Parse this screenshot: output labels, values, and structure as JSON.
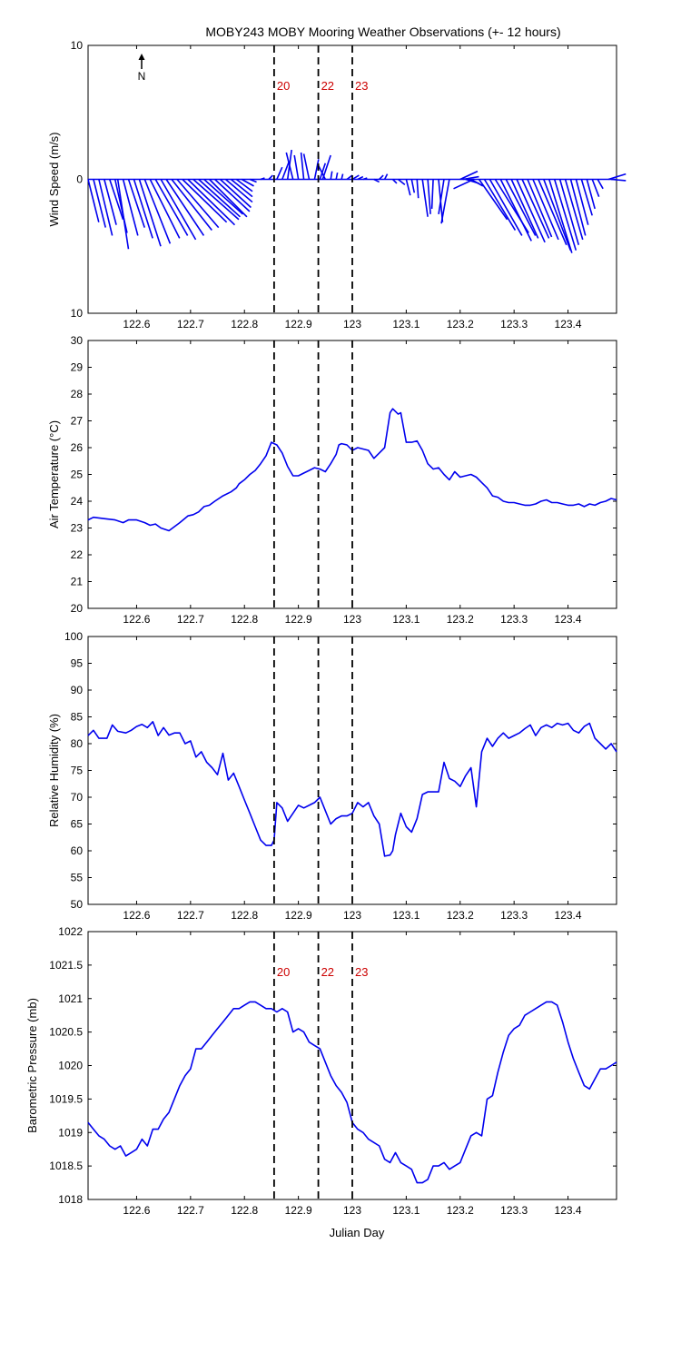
{
  "figure": {
    "title": "MOBY243 MOBY Mooring Weather Observations (+- 12 hours)",
    "xlabel": "Julian Day",
    "north_label": "N",
    "series_color": "#0000ee",
    "event_color": "#cc0000"
  },
  "x_ticks": [
    "122.6",
    "122.7",
    "122.8",
    "122.9",
    "123",
    "123.1",
    "123.2",
    "123.3",
    "123.4"
  ],
  "events": [
    {
      "label": "20",
      "x": 122.855
    },
    {
      "label": "22",
      "x": 122.937
    },
    {
      "label": "23",
      "x": 123.0
    }
  ],
  "chart_data": [
    {
      "type": "quiver",
      "ylabel": "Wind Speed (m/s)",
      "xlim": [
        122.51,
        123.49
      ],
      "ylim": [
        -10,
        10
      ],
      "y_ticks": [
        "10",
        "0",
        "10"
      ],
      "grid": false,
      "show_event_labels": true,
      "vectors": [
        {
          "x": 122.51,
          "u": 0.8,
          "v": -3.2
        },
        {
          "x": 122.52,
          "u": 0.9,
          "v": -3.6
        },
        {
          "x": 122.53,
          "u": 1.0,
          "v": -4.2
        },
        {
          "x": 122.54,
          "u": 0.9,
          "v": -3.4
        },
        {
          "x": 122.55,
          "u": 1.0,
          "v": -3.0
        },
        {
          "x": 122.56,
          "u": 0.9,
          "v": -4.0
        },
        {
          "x": 122.565,
          "u": 0.8,
          "v": -5.2
        },
        {
          "x": 122.575,
          "u": 1.1,
          "v": -4.2
        },
        {
          "x": 122.585,
          "u": 1.2,
          "v": -3.6
        },
        {
          "x": 122.595,
          "u": 1.4,
          "v": -4.4
        },
        {
          "x": 122.605,
          "u": 1.6,
          "v": -5.0
        },
        {
          "x": 122.615,
          "u": 1.9,
          "v": -4.8
        },
        {
          "x": 122.625,
          "u": 2.2,
          "v": -4.4
        },
        {
          "x": 122.635,
          "u": 2.4,
          "v": -4.2
        },
        {
          "x": 122.645,
          "u": 2.6,
          "v": -4.5
        },
        {
          "x": 122.655,
          "u": 2.8,
          "v": -4.2
        },
        {
          "x": 122.665,
          "u": 3.0,
          "v": -3.8
        },
        {
          "x": 122.675,
          "u": 3.1,
          "v": -3.6
        },
        {
          "x": 122.685,
          "u": 3.3,
          "v": -3.2
        },
        {
          "x": 122.695,
          "u": 3.5,
          "v": -3.4
        },
        {
          "x": 122.705,
          "u": 3.4,
          "v": -3.0
        },
        {
          "x": 122.715,
          "u": 3.1,
          "v": -2.8
        },
        {
          "x": 122.725,
          "u": 2.9,
          "v": -2.6
        },
        {
          "x": 122.735,
          "u": 2.8,
          "v": -2.8
        },
        {
          "x": 122.745,
          "u": 2.6,
          "v": -2.4
        },
        {
          "x": 122.755,
          "u": 2.3,
          "v": -2.1
        },
        {
          "x": 122.765,
          "u": 2.0,
          "v": -1.7
        },
        {
          "x": 122.775,
          "u": 1.6,
          "v": -1.3
        },
        {
          "x": 122.785,
          "u": 1.2,
          "v": -0.9
        },
        {
          "x": 122.795,
          "u": 0.9,
          "v": -0.5
        },
        {
          "x": 122.81,
          "u": 0.5,
          "v": -0.2
        },
        {
          "x": 122.83,
          "u": 0.3,
          "v": 0.1
        },
        {
          "x": 122.845,
          "u": 0.3,
          "v": 0.3
        },
        {
          "x": 122.86,
          "u": 0.4,
          "v": 0.9
        },
        {
          "x": 122.87,
          "u": 0.5,
          "v": 1.3
        },
        {
          "x": 122.88,
          "u": 0.3,
          "v": 2.2
        },
        {
          "x": 122.89,
          "u": -0.5,
          "v": 2.0
        },
        {
          "x": 122.9,
          "u": -0.3,
          "v": 1.8
        },
        {
          "x": 122.91,
          "u": -0.2,
          "v": 2.0
        },
        {
          "x": 122.92,
          "u": -0.4,
          "v": 1.9
        },
        {
          "x": 122.93,
          "u": 0.3,
          "v": 1.5
        },
        {
          "x": 122.94,
          "u": 0.4,
          "v": 1.2
        },
        {
          "x": 122.945,
          "u": 0.6,
          "v": 1.8
        },
        {
          "x": 122.95,
          "u": -0.6,
          "v": 1.2
        },
        {
          "x": 122.96,
          "u": 0.1,
          "v": 0.6
        },
        {
          "x": 122.97,
          "u": 0.1,
          "v": 0.5
        },
        {
          "x": 122.98,
          "u": 0.1,
          "v": 0.4
        },
        {
          "x": 122.99,
          "u": 0.4,
          "v": 0.3
        },
        {
          "x": 123.0,
          "u": 0.5,
          "v": 0.3
        },
        {
          "x": 123.01,
          "u": 0.4,
          "v": 0.2
        },
        {
          "x": 123.02,
          "u": 0.3,
          "v": 0.1
        },
        {
          "x": 123.04,
          "u": 0.4,
          "v": -0.2
        },
        {
          "x": 123.05,
          "u": 0.3,
          "v": 0.3
        },
        {
          "x": 123.06,
          "u": 0.2,
          "v": 0.4
        },
        {
          "x": 123.075,
          "u": 0.3,
          "v": -0.3
        },
        {
          "x": 123.085,
          "u": 0.5,
          "v": -0.4
        },
        {
          "x": 123.1,
          "u": 0.3,
          "v": -1.2
        },
        {
          "x": 123.11,
          "u": 0.2,
          "v": -1.0
        },
        {
          "x": 123.12,
          "u": 0.1,
          "v": -1.4
        },
        {
          "x": 123.13,
          "u": 0.4,
          "v": -2.8
        },
        {
          "x": 123.14,
          "u": 0.2,
          "v": -2.6
        },
        {
          "x": 123.15,
          "u": -0.1,
          "v": -2.2
        },
        {
          "x": 123.16,
          "u": 0.3,
          "v": -3.2
        },
        {
          "x": 123.17,
          "u": -0.4,
          "v": -2.6
        },
        {
          "x": 123.18,
          "u": -0.6,
          "v": -3.3
        },
        {
          "x": 123.2,
          "u": 1.3,
          "v": 0.6
        },
        {
          "x": 123.205,
          "u": 1.2,
          "v": 0.2
        },
        {
          "x": 123.21,
          "u": 1.0,
          "v": -0.3
        },
        {
          "x": 123.22,
          "u": 0.9,
          "v": -0.5
        },
        {
          "x": 123.225,
          "u": -1.5,
          "v": -0.7
        },
        {
          "x": 123.235,
          "u": 2.1,
          "v": -3.0
        },
        {
          "x": 123.245,
          "u": 2.3,
          "v": -3.8
        },
        {
          "x": 123.255,
          "u": 2.4,
          "v": -4.2
        },
        {
          "x": 123.265,
          "u": 2.5,
          "v": -4.0
        },
        {
          "x": 123.275,
          "u": 2.3,
          "v": -4.6
        },
        {
          "x": 123.285,
          "u": 2.2,
          "v": -4.2
        },
        {
          "x": 123.295,
          "u": 2.0,
          "v": -4.4
        },
        {
          "x": 123.305,
          "u": 2.1,
          "v": -4.7
        },
        {
          "x": 123.315,
          "u": 2.0,
          "v": -4.4
        },
        {
          "x": 123.325,
          "u": 1.8,
          "v": -4.3
        },
        {
          "x": 123.335,
          "u": 1.9,
          "v": -4.5
        },
        {
          "x": 123.345,
          "u": 2.1,
          "v": -4.9
        },
        {
          "x": 123.355,
          "u": 2.0,
          "v": -5.3
        },
        {
          "x": 123.365,
          "u": 1.7,
          "v": -5.5
        },
        {
          "x": 123.375,
          "u": 1.6,
          "v": -5.3
        },
        {
          "x": 123.385,
          "u": 1.4,
          "v": -4.9
        },
        {
          "x": 123.395,
          "u": 1.3,
          "v": -4.5
        },
        {
          "x": 123.405,
          "u": 1.1,
          "v": -4.2
        },
        {
          "x": 123.415,
          "u": 0.9,
          "v": -3.4
        },
        {
          "x": 123.425,
          "u": 0.8,
          "v": -2.7
        },
        {
          "x": 123.435,
          "u": 0.6,
          "v": -2.2
        },
        {
          "x": 123.445,
          "u": 0.5,
          "v": -1.3
        },
        {
          "x": 123.455,
          "u": 0.4,
          "v": -0.7
        },
        {
          "x": 123.475,
          "u": 1.3,
          "v": 0.4
        },
        {
          "x": 123.48,
          "u": 1.1,
          "v": -0.1
        }
      ]
    },
    {
      "type": "line",
      "ylabel": "Air Temperature (°C)",
      "xlim": [
        122.51,
        123.49
      ],
      "ylim": [
        20,
        30
      ],
      "y_ticks": [
        "20",
        "21",
        "22",
        "23",
        "24",
        "25",
        "26",
        "27",
        "28",
        "29",
        "30"
      ],
      "grid": false,
      "show_event_labels": false,
      "x": [
        122.51,
        122.52,
        122.54,
        122.56,
        122.575,
        122.585,
        122.6,
        122.615,
        122.625,
        122.635,
        122.645,
        122.66,
        122.68,
        122.695,
        122.705,
        122.715,
        122.725,
        122.735,
        122.745,
        122.76,
        122.775,
        122.785,
        122.79,
        122.8,
        122.81,
        122.82,
        122.83,
        122.84,
        122.85,
        122.855,
        122.86,
        122.87,
        122.88,
        122.89,
        122.9,
        122.91,
        122.92,
        122.93,
        122.94,
        122.95,
        122.96,
        122.97,
        122.975,
        122.98,
        122.99,
        123.0,
        123.01,
        123.03,
        123.04,
        123.05,
        123.06,
        123.07,
        123.075,
        123.085,
        123.09,
        123.1,
        123.11,
        123.12,
        123.13,
        123.14,
        123.15,
        123.16,
        123.17,
        123.18,
        123.19,
        123.2,
        123.21,
        123.22,
        123.23,
        123.24,
        123.25,
        123.26,
        123.27,
        123.28,
        123.29,
        123.3,
        123.31,
        123.32,
        123.33,
        123.34,
        123.35,
        123.36,
        123.37,
        123.38,
        123.39,
        123.4,
        123.41,
        123.42,
        123.43,
        123.44,
        123.45,
        123.46,
        123.47,
        123.48,
        123.49
      ],
      "y": [
        23.3,
        23.4,
        23.35,
        23.3,
        23.2,
        23.3,
        23.3,
        23.2,
        23.1,
        23.15,
        23.0,
        22.9,
        23.2,
        23.45,
        23.5,
        23.6,
        23.8,
        23.85,
        24.0,
        24.2,
        24.35,
        24.5,
        24.65,
        24.8,
        25.0,
        25.15,
        25.4,
        25.7,
        26.2,
        26.15,
        26.1,
        25.8,
        25.3,
        24.95,
        24.95,
        25.05,
        25.15,
        25.25,
        25.2,
        25.1,
        25.4,
        25.75,
        26.1,
        26.15,
        26.1,
        25.9,
        26.0,
        25.9,
        25.6,
        25.8,
        26.0,
        27.3,
        27.45,
        27.25,
        27.3,
        26.2,
        26.2,
        26.25,
        25.9,
        25.4,
        25.2,
        25.25,
        25.0,
        24.8,
        25.1,
        24.9,
        24.95,
        25.0,
        24.9,
        24.7,
        24.5,
        24.2,
        24.15,
        24.0,
        23.95,
        23.95,
        23.9,
        23.85,
        23.85,
        23.9,
        24.0,
        24.05,
        23.95,
        23.95,
        23.9,
        23.85,
        23.85,
        23.9,
        23.8,
        23.9,
        23.85,
        23.95,
        24.0,
        24.1,
        24.05
      ]
    },
    {
      "type": "line",
      "ylabel": "Relative Humidity (%)",
      "xlim": [
        122.51,
        123.49
      ],
      "ylim": [
        50,
        100
      ],
      "y_ticks": [
        "50",
        "55",
        "60",
        "65",
        "70",
        "75",
        "80",
        "85",
        "90",
        "95",
        "100"
      ],
      "grid": false,
      "show_event_labels": false,
      "x": [
        122.51,
        122.52,
        122.53,
        122.545,
        122.555,
        122.565,
        122.58,
        122.59,
        122.6,
        122.61,
        122.62,
        122.63,
        122.64,
        122.65,
        122.66,
        122.67,
        122.68,
        122.69,
        122.7,
        122.71,
        122.72,
        122.73,
        122.74,
        122.75,
        122.76,
        122.77,
        122.78,
        122.79,
        122.8,
        122.81,
        122.82,
        122.83,
        122.84,
        122.85,
        122.855,
        122.86,
        122.87,
        122.88,
        122.89,
        122.9,
        122.91,
        122.92,
        122.93,
        122.94,
        122.95,
        122.96,
        122.97,
        122.98,
        122.99,
        123.0,
        123.01,
        123.02,
        123.03,
        123.04,
        123.05,
        123.06,
        123.07,
        123.075,
        123.08,
        123.09,
        123.1,
        123.11,
        123.12,
        123.13,
        123.14,
        123.15,
        123.16,
        123.17,
        123.18,
        123.19,
        123.2,
        123.21,
        123.22,
        123.23,
        123.24,
        123.25,
        123.26,
        123.27,
        123.28,
        123.29,
        123.3,
        123.31,
        123.32,
        123.33,
        123.34,
        123.35,
        123.36,
        123.37,
        123.38,
        123.39,
        123.4,
        123.41,
        123.42,
        123.43,
        123.44,
        123.45,
        123.46,
        123.47,
        123.48,
        123.49
      ],
      "y": [
        81.5,
        82.5,
        81,
        81,
        83.5,
        82.3,
        82,
        82.5,
        83.2,
        83.6,
        83,
        84.1,
        81.5,
        83,
        81.6,
        82,
        82,
        80,
        80.5,
        77.5,
        78.5,
        76.5,
        75.5,
        74.2,
        78.2,
        73.2,
        74.5,
        72,
        69.5,
        67,
        64.5,
        62,
        61,
        61,
        62,
        69,
        68,
        65.5,
        67,
        68.5,
        68,
        68.5,
        69,
        70,
        67.5,
        65,
        66,
        66.5,
        66.5,
        67,
        69,
        68.2,
        69,
        66.5,
        65,
        59,
        59.2,
        60,
        63,
        67,
        64.5,
        63.5,
        66,
        70.5,
        71,
        71,
        71,
        76.5,
        73.5,
        73,
        72,
        74,
        75.5,
        68.2,
        78.5,
        81,
        79.5,
        81,
        82,
        81,
        81.5,
        82,
        82.8,
        83.5,
        81.5,
        83,
        83.5,
        83,
        83.8,
        83.5,
        83.8,
        82.5,
        82,
        83.2,
        83.8,
        81,
        80,
        79,
        80,
        78.5
      ]
    },
    {
      "type": "line",
      "ylabel": "Barometric Pressure (mb)",
      "xlim": [
        122.51,
        123.49
      ],
      "ylim": [
        1018,
        1022
      ],
      "y_ticks": [
        "1018",
        "1018.5",
        "1019",
        "1019.5",
        "1020",
        "1020.5",
        "1021",
        "1021.5",
        "1022"
      ],
      "grid": false,
      "show_event_labels": true,
      "x": [
        122.51,
        122.52,
        122.53,
        122.54,
        122.55,
        122.56,
        122.57,
        122.58,
        122.59,
        122.6,
        122.61,
        122.62,
        122.63,
        122.64,
        122.65,
        122.66,
        122.67,
        122.68,
        122.69,
        122.7,
        122.71,
        122.72,
        122.73,
        122.74,
        122.75,
        122.76,
        122.77,
        122.78,
        122.79,
        122.8,
        122.81,
        122.82,
        122.83,
        122.84,
        122.85,
        122.86,
        122.87,
        122.88,
        122.89,
        122.9,
        122.91,
        122.92,
        122.93,
        122.94,
        122.95,
        122.96,
        122.97,
        122.98,
        122.99,
        123.0,
        123.01,
        123.02,
        123.03,
        123.04,
        123.05,
        123.06,
        123.07,
        123.08,
        123.09,
        123.1,
        123.11,
        123.12,
        123.13,
        123.14,
        123.15,
        123.16,
        123.17,
        123.18,
        123.19,
        123.2,
        123.21,
        123.22,
        123.23,
        123.24,
        123.25,
        123.26,
        123.27,
        123.28,
        123.29,
        123.3,
        123.31,
        123.32,
        123.33,
        123.34,
        123.35,
        123.36,
        123.37,
        123.38,
        123.39,
        123.4,
        123.41,
        123.42,
        123.43,
        123.44,
        123.45,
        123.46,
        123.47,
        123.48,
        123.49
      ],
      "y": [
        1019.15,
        1019.05,
        1018.95,
        1018.9,
        1018.8,
        1018.75,
        1018.8,
        1018.65,
        1018.7,
        1018.75,
        1018.9,
        1018.8,
        1019.05,
        1019.05,
        1019.2,
        1019.3,
        1019.5,
        1019.7,
        1019.85,
        1019.95,
        1020.25,
        1020.25,
        1020.35,
        1020.45,
        1020.55,
        1020.65,
        1020.75,
        1020.85,
        1020.85,
        1020.9,
        1020.95,
        1020.95,
        1020.9,
        1020.85,
        1020.85,
        1020.8,
        1020.85,
        1020.8,
        1020.5,
        1020.55,
        1020.5,
        1020.35,
        1020.3,
        1020.25,
        1020.05,
        1019.85,
        1019.7,
        1019.6,
        1019.45,
        1019.15,
        1019.05,
        1019.0,
        1018.9,
        1018.85,
        1018.8,
        1018.6,
        1018.55,
        1018.7,
        1018.55,
        1018.5,
        1018.45,
        1018.25,
        1018.25,
        1018.3,
        1018.5,
        1018.5,
        1018.55,
        1018.45,
        1018.5,
        1018.55,
        1018.75,
        1018.95,
        1019.0,
        1018.95,
        1019.5,
        1019.55,
        1019.9,
        1020.2,
        1020.45,
        1020.55,
        1020.6,
        1020.75,
        1020.8,
        1020.85,
        1020.9,
        1020.95,
        1020.95,
        1020.9,
        1020.65,
        1020.35,
        1020.1,
        1019.9,
        1019.7,
        1019.65,
        1019.8,
        1019.95,
        1019.95,
        1020.0,
        1020.05
      ]
    }
  ]
}
